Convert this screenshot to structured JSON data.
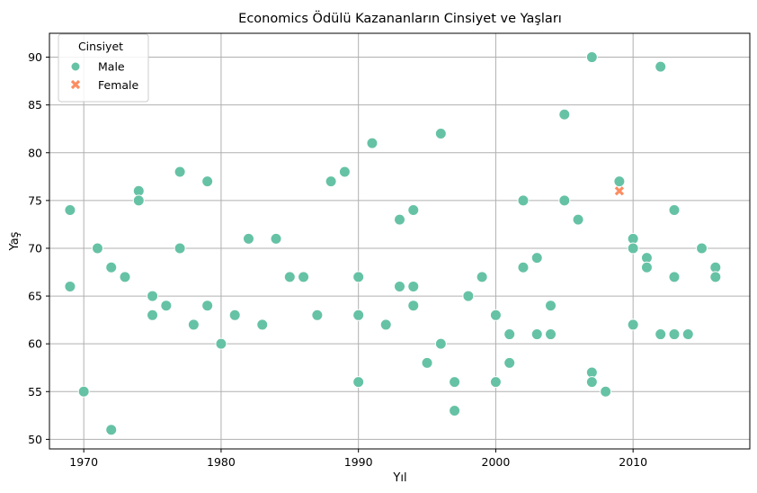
{
  "chart_data": {
    "type": "scatter",
    "title": "Economics Ödülü Kazananların Cinsiyet ve Yaşları",
    "xlabel": "Yıl",
    "ylabel": "Yaş",
    "xlim": [
      1967.5,
      2018.5
    ],
    "ylim": [
      49,
      92.5
    ],
    "xticks": [
      1970,
      1980,
      1990,
      2000,
      2010
    ],
    "yticks": [
      50,
      55,
      60,
      65,
      70,
      75,
      80,
      85,
      90
    ],
    "grid": true,
    "legend": {
      "title": "Cinsiyet",
      "placement": "top-left"
    },
    "series": [
      {
        "name": "Male",
        "color": "#66c2a5",
        "marker": "circle",
        "points": [
          [
            1969,
            74
          ],
          [
            1969,
            66
          ],
          [
            1970,
            55
          ],
          [
            1971,
            70
          ],
          [
            1972,
            68
          ],
          [
            1972,
            51
          ],
          [
            1973,
            67
          ],
          [
            1974,
            76
          ],
          [
            1974,
            75
          ],
          [
            1975,
            65
          ],
          [
            1975,
            63
          ],
          [
            1976,
            64
          ],
          [
            1977,
            78
          ],
          [
            1977,
            70
          ],
          [
            1978,
            62
          ],
          [
            1979,
            77
          ],
          [
            1979,
            64
          ],
          [
            1980,
            60
          ],
          [
            1981,
            63
          ],
          [
            1982,
            71
          ],
          [
            1983,
            62
          ],
          [
            1984,
            71
          ],
          [
            1985,
            67
          ],
          [
            1986,
            67
          ],
          [
            1987,
            63
          ],
          [
            1988,
            77
          ],
          [
            1989,
            78
          ],
          [
            1990,
            67
          ],
          [
            1990,
            63
          ],
          [
            1990,
            56
          ],
          [
            1991,
            81
          ],
          [
            1992,
            62
          ],
          [
            1993,
            73
          ],
          [
            1993,
            66
          ],
          [
            1994,
            74
          ],
          [
            1994,
            66
          ],
          [
            1994,
            64
          ],
          [
            1995,
            58
          ],
          [
            1996,
            82
          ],
          [
            1996,
            60
          ],
          [
            1997,
            56
          ],
          [
            1997,
            53
          ],
          [
            1998,
            65
          ],
          [
            1999,
            67
          ],
          [
            2000,
            63
          ],
          [
            2000,
            56
          ],
          [
            2001,
            61
          ],
          [
            2001,
            58
          ],
          [
            2002,
            75
          ],
          [
            2002,
            68
          ],
          [
            2003,
            69
          ],
          [
            2003,
            61
          ],
          [
            2004,
            64
          ],
          [
            2004,
            61
          ],
          [
            2005,
            84
          ],
          [
            2005,
            75
          ],
          [
            2006,
            73
          ],
          [
            2007,
            90
          ],
          [
            2007,
            57
          ],
          [
            2007,
            56
          ],
          [
            2008,
            55
          ],
          [
            2009,
            77
          ],
          [
            2010,
            71
          ],
          [
            2010,
            70
          ],
          [
            2010,
            62
          ],
          [
            2011,
            69
          ],
          [
            2011,
            68
          ],
          [
            2012,
            89
          ],
          [
            2012,
            61
          ],
          [
            2013,
            74
          ],
          [
            2013,
            67
          ],
          [
            2013,
            61
          ],
          [
            2014,
            61
          ],
          [
            2015,
            70
          ],
          [
            2016,
            68
          ],
          [
            2016,
            67
          ]
        ]
      },
      {
        "name": "Female",
        "color": "#fc8d62",
        "marker": "x",
        "points": [
          [
            2009,
            76
          ]
        ]
      }
    ]
  }
}
